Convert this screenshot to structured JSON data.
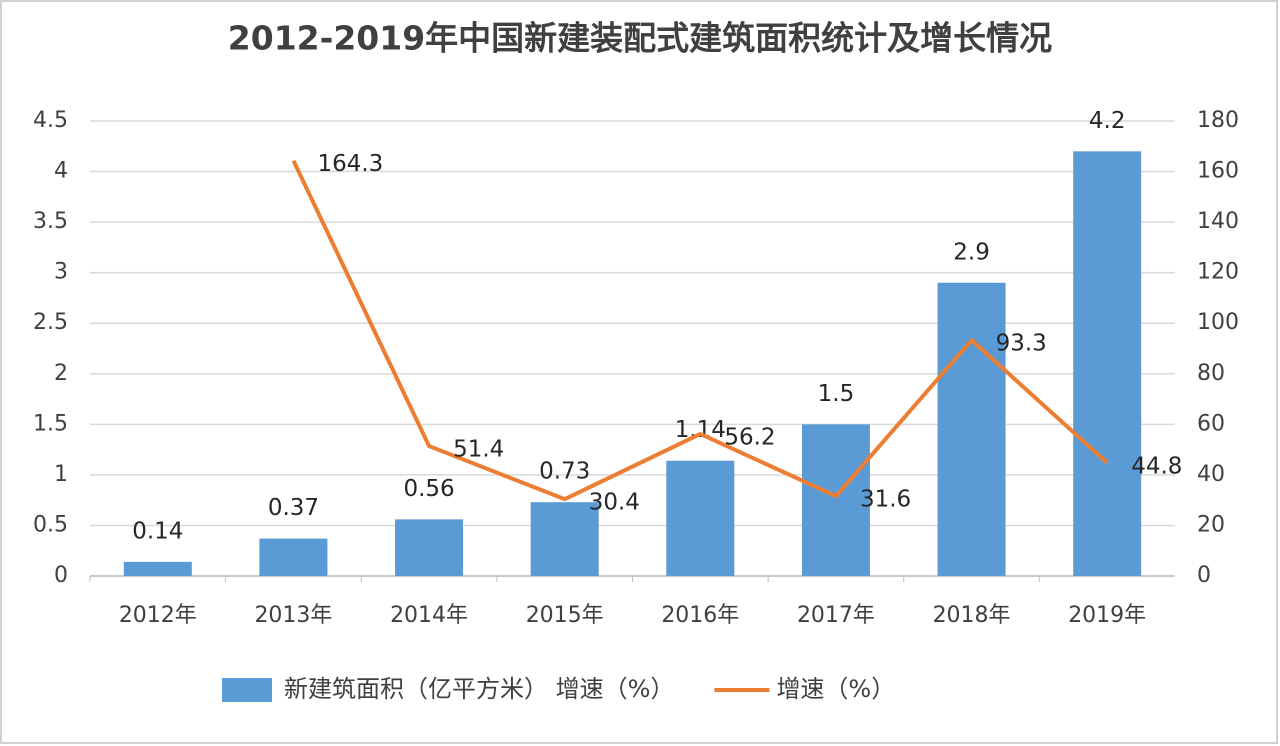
{
  "chart_data": {
    "type": "bar",
    "title": "2012-2019年中国新建装配式建筑面积统计及增长情况",
    "categories": [
      "2012年",
      "2013年",
      "2014年",
      "2015年",
      "2016年",
      "2017年",
      "2018年",
      "2019年"
    ],
    "series": [
      {
        "name": "新建筑面积（亿平方米） 增速（%）",
        "type": "bar",
        "color": "#5b9bd5",
        "values": [
          0.14,
          0.37,
          0.56,
          0.73,
          1.14,
          1.5,
          2.9,
          4.2
        ]
      },
      {
        "name": "增速（%）",
        "type": "line",
        "axis": "y2",
        "color": "#ed7d31",
        "values": [
          null,
          164.3,
          51.4,
          30.4,
          56.2,
          31.6,
          93.3,
          44.8
        ]
      }
    ],
    "ylim": [
      0,
      4.5
    ],
    "yticks": [
      0,
      0.5,
      1,
      1.5,
      2,
      2.5,
      3,
      3.5,
      4,
      4.5
    ],
    "y2lim": [
      0,
      180
    ],
    "y2ticks": [
      0,
      20,
      40,
      60,
      80,
      100,
      120,
      140,
      160,
      180
    ],
    "grid": true,
    "legend": "bottom"
  }
}
